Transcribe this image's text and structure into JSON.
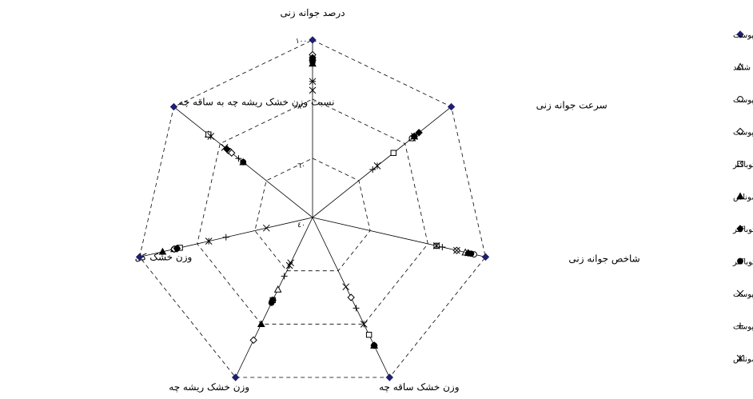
{
  "chart_data": {
    "type": "radar",
    "axes": [
      "درصد جوانه زنی",
      "سرعت جوانه زنی",
      "شاخص جوانه زنی",
      "وزن خشک ساقه چه",
      "وزن خشک ریشه چه",
      "وزن خشک کل",
      "نسبت وزن خشک ریشه چه به ساقه چه"
    ],
    "ticks": [
      40,
      60,
      80,
      100
    ],
    "tick_labels": [
      "٤٠",
      "٦٠",
      "٨٠",
      "١٠٠"
    ],
    "rlim": [
      40,
      100
    ],
    "grid": true,
    "legend_position": "right",
    "series": [
      {
        "name": "کمپوست+ورمی کمپوست",
        "marker": "diamond-filled",
        "color": "#1f1f6e",
        "values": [
          100,
          100,
          100,
          100,
          100,
          100,
          100
        ]
      },
      {
        "name": "شاهد",
        "marker": "triangle-open",
        "color": "#000000",
        "values": [
          94,
          83,
          93,
          88,
          67,
          88,
          85
        ]
      },
      {
        "name": "ازتوباکتر+کمپوست",
        "marker": "circle-open",
        "color": "#000000",
        "values": [
          94,
          83,
          96,
          88,
          71,
          88,
          76
        ]
      },
      {
        "name": "ورمی کمپوست",
        "marker": "diamond-open",
        "color": "#000000",
        "values": [
          95,
          84,
          90,
          70,
          86,
          88,
          75
        ]
      },
      {
        "name": "ازتوباکتر",
        "marker": "square-open",
        "color": "#000000",
        "values": [
          93,
          75,
          83,
          84,
          71,
          86,
          85
        ]
      },
      {
        "name": "سودوموناس",
        "marker": "triangle-filled",
        "color": "#000000",
        "values": [
          92,
          84,
          94,
          88,
          80,
          92,
          70
        ]
      },
      {
        "name": "ورمی کمپوست+ازتوباکتر",
        "marker": "diamond-filled",
        "color": "#000000",
        "values": [
          94,
          86,
          94,
          88,
          71,
          87,
          77
        ]
      },
      {
        "name": "سودوموناس+ازتوباکتر",
        "marker": "circle-filled",
        "color": "#000000",
        "values": [
          93,
          84,
          95,
          88,
          72,
          87,
          70
        ]
      },
      {
        "name": "سودوموناس+ورمی کمپوست",
        "marker": "x",
        "color": "#000000",
        "values": [
          86,
          84,
          90,
          66,
          57,
          56,
          78
        ]
      },
      {
        "name": "کمپوست",
        "marker": "plus",
        "color": "#000000",
        "values": [
          86,
          66,
          85,
          74,
          62,
          70,
          72
        ]
      },
      {
        "name": "کمپوست+سودوموناس",
        "marker": "asterisk",
        "color": "#000000",
        "values": [
          83,
          68,
          83,
          80,
          58,
          76,
          84
        ]
      }
    ]
  }
}
